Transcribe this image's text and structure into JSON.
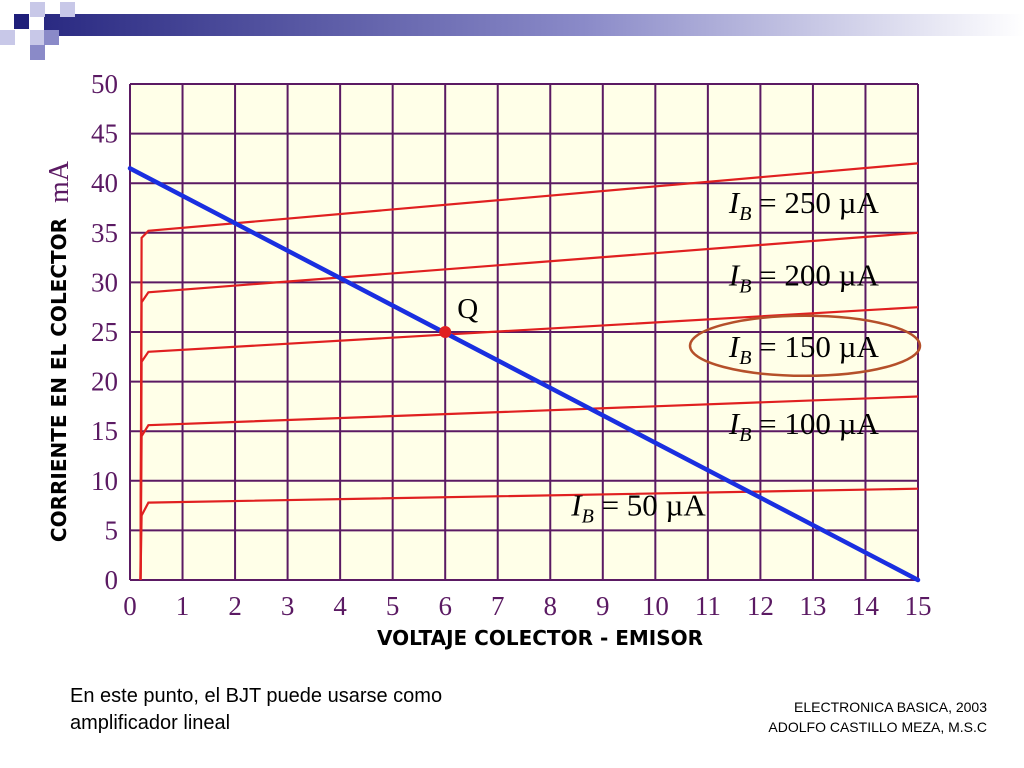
{
  "chart_data": {
    "type": "line",
    "title": "",
    "xlabel": "VOLTAJE COLECTOR - EMISOR",
    "ylabel": "CORRIENTE EN EL COLECTOR",
    "ylabel_unit": "mA",
    "xlim": [
      0,
      15
    ],
    "ylim": [
      0,
      50
    ],
    "x_ticks": [
      0,
      1,
      2,
      3,
      4,
      5,
      6,
      7,
      8,
      9,
      10,
      11,
      12,
      13,
      14,
      15
    ],
    "y_ticks": [
      0,
      5,
      10,
      15,
      20,
      25,
      30,
      35,
      40,
      45,
      50
    ],
    "grid": true,
    "series": [
      {
        "name": "I_B = 50 µA",
        "points": [
          [
            0.2,
            0
          ],
          [
            0.22,
            6.5
          ],
          [
            0.35,
            7.8
          ],
          [
            15,
            9.2
          ]
        ]
      },
      {
        "name": "I_B = 100 µA",
        "points": [
          [
            0.2,
            0
          ],
          [
            0.22,
            14.5
          ],
          [
            0.35,
            15.6
          ],
          [
            15,
            18.5
          ]
        ]
      },
      {
        "name": "I_B = 150 µA",
        "points": [
          [
            0.2,
            0
          ],
          [
            0.22,
            22
          ],
          [
            0.35,
            23
          ],
          [
            15,
            27.5
          ]
        ]
      },
      {
        "name": "I_B = 200 µA",
        "points": [
          [
            0.2,
            0
          ],
          [
            0.22,
            28
          ],
          [
            0.35,
            29
          ],
          [
            15,
            35
          ]
        ]
      },
      {
        "name": "I_B = 250 µA",
        "points": [
          [
            0.2,
            0
          ],
          [
            0.22,
            34.5
          ],
          [
            0.35,
            35.2
          ],
          [
            15,
            42
          ]
        ]
      }
    ],
    "load_line": {
      "points": [
        [
          0,
          41.5
        ],
        [
          15,
          0
        ]
      ]
    },
    "q_point": {
      "label": "Q",
      "x": 6,
      "y": 25
    },
    "curve_labels": [
      {
        "prefix": "I",
        "sub": "B",
        "text": " = 250 µA",
        "x": 11.4,
        "y": 37,
        "highlight": false
      },
      {
        "prefix": "I",
        "sub": "B",
        "text": " = 200 µA",
        "x": 11.4,
        "y": 29.7,
        "highlight": false
      },
      {
        "prefix": "I",
        "sub": "B",
        "text": " = 150 µA",
        "x": 11.4,
        "y": 22.5,
        "highlight": true
      },
      {
        "prefix": "I",
        "sub": "B",
        "text": " = 100 µA",
        "x": 11.4,
        "y": 14.7,
        "highlight": false
      },
      {
        "prefix": "I",
        "sub": "B",
        "text": " = 50 µA",
        "x": 8.4,
        "y": 6.5,
        "highlight": false
      }
    ],
    "colors": {
      "plot_bg": "#FFFFE8",
      "grid": "#5B1A63",
      "curves": "#E02020",
      "load_line": "#1A2FE0",
      "q_point": "#E02020",
      "highlight": "#B5502A",
      "tick_labels": "#5B1A63",
      "axis_titles": "#000000"
    }
  },
  "caption": {
    "line1": "En este punto, el BJT puede usarse como",
    "line2": "amplificador lineal"
  },
  "credits": {
    "line1": "ELECTRONICA BASICA, 2003",
    "line2": "ADOLFO CASTILLO MEZA, M.S.C"
  },
  "decoration": {
    "colors": {
      "dark": "#1F1F7A",
      "mid": "#8A8AC8",
      "light": "#C8C8E8"
    }
  }
}
